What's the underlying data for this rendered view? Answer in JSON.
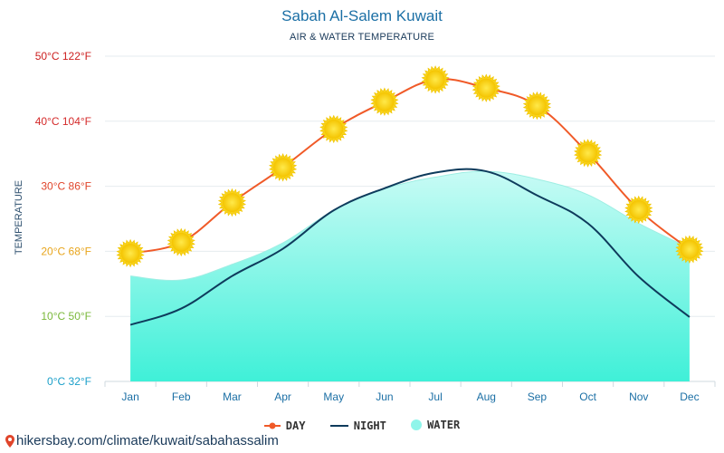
{
  "chart_data": {
    "type": "line",
    "title": "Sabah Al-Salem Kuwait",
    "subtitle": "AIR & WATER TEMPERATURE",
    "ylabel": "TEMPERATURE",
    "ylim": [
      0,
      50
    ],
    "grid": true,
    "legend_position": "bottom",
    "categories": [
      "Jan",
      "Feb",
      "Mar",
      "Apr",
      "May",
      "Jun",
      "Jul",
      "Aug",
      "Sep",
      "Oct",
      "Nov",
      "Dec"
    ],
    "y_ticks": [
      {
        "value": 0,
        "label": "0°C 32°F",
        "color": "#1a9fc9"
      },
      {
        "value": 10,
        "label": "10°C 50°F",
        "color": "#7ab83a"
      },
      {
        "value": 20,
        "label": "20°C 68°F",
        "color": "#e8a51c"
      },
      {
        "value": 30,
        "label": "30°C 86°F",
        "color": "#e0452b"
      },
      {
        "value": 40,
        "label": "40°C 104°F",
        "color": "#d42a2a"
      },
      {
        "value": 50,
        "label": "50°C 122°F",
        "color": "#cc1f1f"
      }
    ],
    "series": [
      {
        "name": "DAY",
        "color": "#f05a28",
        "marker": "sun-icon",
        "values": [
          19.7,
          21.4,
          27.5,
          32.9,
          38.8,
          43.0,
          46.4,
          45.1,
          42.4,
          35.1,
          26.4,
          20.3
        ]
      },
      {
        "name": "NIGHT",
        "color": "#0e3b5c",
        "values": [
          8.7,
          11.2,
          16.2,
          20.4,
          26.3,
          29.7,
          32.1,
          32.3,
          28.6,
          24.3,
          16.1,
          9.9
        ]
      },
      {
        "name": "WATER",
        "color": "#8ff5ea",
        "values": [
          16.2,
          15.6,
          18.0,
          21.3,
          26.3,
          29.6,
          31.4,
          32.3,
          31.1,
          28.7,
          24.3,
          20.5
        ]
      }
    ]
  },
  "footer": {
    "url": "hikersbay.com/climate/kuwait/sabahassalim",
    "pin_icon": "location-pin-icon"
  }
}
